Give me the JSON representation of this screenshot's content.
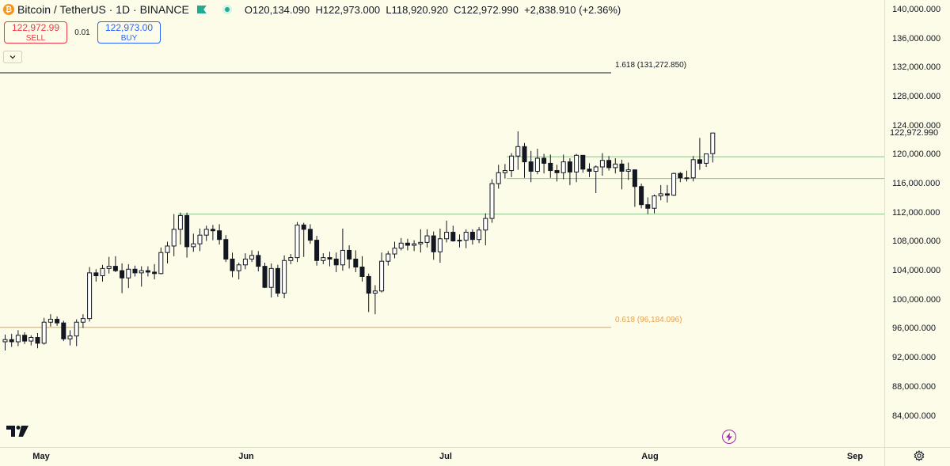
{
  "header": {
    "coin_glyph": "₿",
    "symbol": "Bitcoin / TetherUS · 1D · BINANCE",
    "open": "O120,134.090",
    "high": "H122,973.000",
    "low": "L118,920.920",
    "close": "C122,972.990",
    "change": "+2,838.910 (+2.36%)"
  },
  "trade": {
    "sell_price": "122,972.99",
    "sell_label": "SELL",
    "spread": "0.01",
    "buy_price": "122,973.00",
    "buy_label": "BUY"
  },
  "price_axis": {
    "ticks": [
      140000,
      136000,
      132000,
      128000,
      124000,
      120000,
      116000,
      112000,
      108000,
      104000,
      100000,
      96000,
      92000,
      88000,
      84000
    ],
    "tick_labels": [
      "140,000.000",
      "136,000.000",
      "132,000.000",
      "128,000.000",
      "124,000.000",
      "120,000.000",
      "116,000.000",
      "112,000.000",
      "108,000.000",
      "104,000.000",
      "100,000.000",
      "96,000.000",
      "92,000.000",
      "88,000.000",
      "84,000.000"
    ],
    "last_price": 122972.99,
    "last_price_label": "122,972.990"
  },
  "time_axis": {
    "labels": [
      "May",
      "Jun",
      "Jul",
      "Aug",
      "Sep"
    ]
  },
  "fib_levels": [
    {
      "label": "1.618 (131,272.850)",
      "value": 131272.85,
      "color": "#131722"
    },
    {
      "label": "0.618 (96,184.096)",
      "value": 96184.096,
      "color": "#E8A04C"
    }
  ],
  "horizontal_lines": [
    {
      "value": 119700,
      "color": "#8BC38B"
    },
    {
      "value": 116700,
      "color": "#8BC38B"
    },
    {
      "value": 111800,
      "color": "#8BC38B"
    }
  ],
  "chart_data": {
    "type": "candlestick",
    "series": [
      {
        "name": "BTCUSDT",
        "ohlc": [
          [
            94200,
            95200,
            93000,
            94500
          ],
          [
            94500,
            95300,
            93500,
            94200
          ],
          [
            94200,
            95800,
            93600,
            95100
          ],
          [
            95100,
            95500,
            93900,
            94300
          ],
          [
            94300,
            95100,
            93700,
            94800
          ],
          [
            94800,
            95400,
            93300,
            94000
          ],
          [
            94000,
            97500,
            93800,
            96900
          ],
          [
            96900,
            98000,
            96300,
            97300
          ],
          [
            97300,
            97700,
            96400,
            96800
          ],
          [
            96800,
            97100,
            94300,
            94600
          ],
          [
            94600,
            95800,
            93700,
            95000
          ],
          [
            95000,
            97300,
            93600,
            96900
          ],
          [
            96900,
            98000,
            96100,
            97400
          ],
          [
            97400,
            104500,
            97000,
            103700
          ],
          [
            103700,
            104200,
            102500,
            103300
          ],
          [
            103300,
            104800,
            102500,
            104300
          ],
          [
            104300,
            105900,
            103600,
            104600
          ],
          [
            104600,
            106000,
            103800,
            104000
          ],
          [
            104000,
            105000,
            100900,
            103000
          ],
          [
            103000,
            104900,
            101600,
            104200
          ],
          [
            104200,
            104700,
            103200,
            103700
          ],
          [
            103700,
            104600,
            101800,
            104000
          ],
          [
            104000,
            104600,
            103200,
            103800
          ],
          [
            103800,
            104900,
            102800,
            103600
          ],
          [
            103600,
            107200,
            103500,
            106500
          ],
          [
            106500,
            108000,
            105000,
            107400
          ],
          [
            107400,
            111800,
            106000,
            109700
          ],
          [
            109700,
            112000,
            107600,
            111600
          ],
          [
            111600,
            112000,
            105800,
            107300
          ],
          [
            107300,
            109100,
            106600,
            107700
          ],
          [
            107700,
            109800,
            106700,
            108900
          ],
          [
            108900,
            110200,
            108100,
            109700
          ],
          [
            109700,
            110300,
            108200,
            109500
          ],
          [
            109500,
            110400,
            107600,
            108300
          ],
          [
            108300,
            108900,
            105200,
            105600
          ],
          [
            105600,
            106500,
            103100,
            104000
          ],
          [
            104000,
            105100,
            102800,
            104800
          ],
          [
            104800,
            106400,
            104200,
            105600
          ],
          [
            105600,
            106800,
            105200,
            106100
          ],
          [
            106100,
            106700,
            103900,
            104600
          ],
          [
            104600,
            105100,
            101600,
            101700
          ],
          [
            101700,
            105000,
            100300,
            104300
          ],
          [
            104300,
            104800,
            100400,
            100900
          ],
          [
            100900,
            106100,
            100200,
            105400
          ],
          [
            105400,
            106300,
            104900,
            105800
          ],
          [
            105800,
            110700,
            105200,
            110300
          ],
          [
            110300,
            110600,
            105900,
            109700
          ],
          [
            109700,
            110400,
            107700,
            108200
          ],
          [
            108200,
            108800,
            104700,
            105400
          ],
          [
            105400,
            106400,
            104900,
            105800
          ],
          [
            105800,
            106600,
            104600,
            105600
          ],
          [
            105600,
            106500,
            103800,
            104800
          ],
          [
            104800,
            109800,
            104000,
            106800
          ],
          [
            106800,
            107500,
            104300,
            105600
          ],
          [
            105600,
            106800,
            103800,
            104500
          ],
          [
            104500,
            106000,
            102500,
            103200
          ],
          [
            103200,
            103600,
            98300,
            100900
          ],
          [
            100900,
            102000,
            98000,
            101200
          ],
          [
            101200,
            106500,
            101000,
            105300
          ],
          [
            105300,
            106700,
            104700,
            106300
          ],
          [
            106300,
            108000,
            105700,
            107100
          ],
          [
            107100,
            108500,
            106800,
            107800
          ],
          [
            107800,
            108400,
            106800,
            107500
          ],
          [
            107500,
            108200,
            106700,
            107700
          ],
          [
            107700,
            109700,
            106500,
            107900
          ],
          [
            107900,
            109700,
            107200,
            108800
          ],
          [
            108800,
            109400,
            105500,
            106600
          ],
          [
            106600,
            109800,
            105100,
            108400
          ],
          [
            108400,
            110900,
            107900,
            109300
          ],
          [
            109300,
            110200,
            108000,
            108100
          ],
          [
            108100,
            109000,
            107200,
            108200
          ],
          [
            108200,
            109700,
            107100,
            109300
          ],
          [
            109300,
            109700,
            107600,
            108300
          ],
          [
            108300,
            110000,
            107800,
            109600
          ],
          [
            109600,
            111900,
            107500,
            111200
          ],
          [
            111200,
            116600,
            110600,
            116000
          ],
          [
            116000,
            118600,
            115300,
            117500
          ],
          [
            117500,
            118700,
            116700,
            117800
          ],
          [
            117800,
            120200,
            116900,
            119800
          ],
          [
            119800,
            123200,
            117900,
            121100
          ],
          [
            121100,
            121600,
            116800,
            119000
          ],
          [
            119000,
            120500,
            116200,
            117700
          ],
          [
            117700,
            120800,
            117300,
            119500
          ],
          [
            119500,
            120100,
            117400,
            118800
          ],
          [
            118800,
            120000,
            116800,
            117800
          ],
          [
            117800,
            118600,
            116300,
            117500
          ],
          [
            117500,
            120000,
            116600,
            119000
          ],
          [
            119000,
            119500,
            115800,
            117600
          ],
          [
            117600,
            120100,
            116200,
            119900
          ],
          [
            119900,
            119900,
            117500,
            118000
          ],
          [
            118000,
            118800,
            116900,
            117700
          ],
          [
            117700,
            118500,
            114700,
            118300
          ],
          [
            118300,
            120200,
            117100,
            119200
          ],
          [
            119200,
            119800,
            117800,
            118200
          ],
          [
            118200,
            119500,
            117400,
            118700
          ],
          [
            118700,
            119300,
            115200,
            117700
          ],
          [
            117700,
            118900,
            116500,
            117900
          ],
          [
            117900,
            117900,
            112800,
            115600
          ],
          [
            115600,
            116000,
            112600,
            113100
          ],
          [
            113100,
            114100,
            111800,
            112600
          ],
          [
            112600,
            114500,
            111900,
            114300
          ],
          [
            114300,
            115800,
            113700,
            114600
          ],
          [
            114600,
            115800,
            113400,
            114400
          ],
          [
            114400,
            117500,
            114300,
            117400
          ],
          [
            117400,
            117600,
            116200,
            116800
          ],
          [
            116800,
            117800,
            116300,
            116800
          ],
          [
            116800,
            119800,
            116300,
            119300
          ],
          [
            119300,
            122300,
            117900,
            118800
          ],
          [
            118800,
            120000,
            118300,
            120100
          ],
          [
            120134.09,
            122973,
            118920.92,
            122972.99
          ]
        ]
      }
    ],
    "last_date_label": "Aug"
  },
  "icons": {
    "logo": "tradingview-logo-icon",
    "bolt": "lightning-bolt-icon",
    "settings": "settings-gear-icon",
    "collapse": "chevron-down-icon"
  }
}
